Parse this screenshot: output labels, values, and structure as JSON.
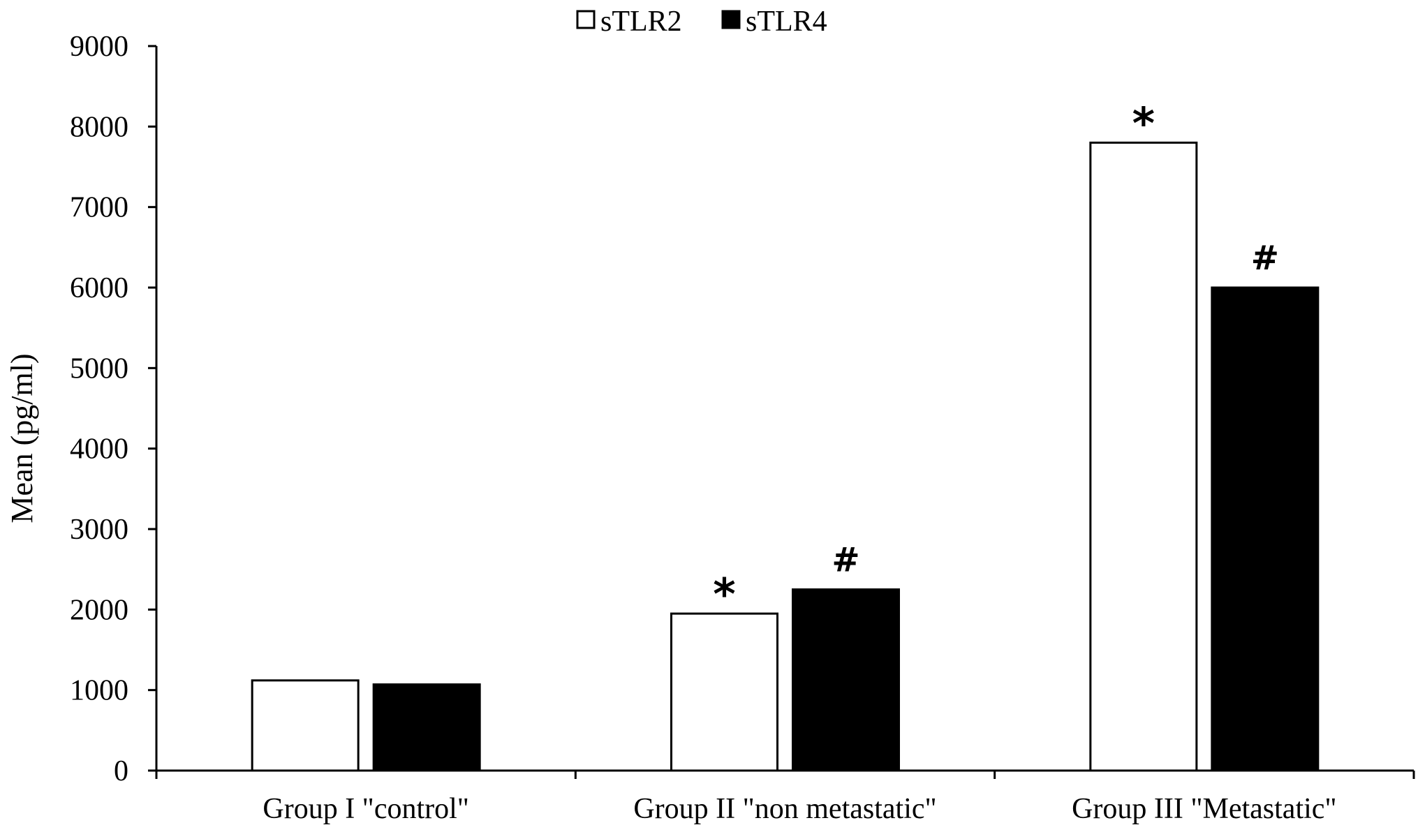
{
  "chart_data": {
    "type": "bar",
    "ylabel": "Mean (pg/ml)",
    "ylim": [
      0,
      9000
    ],
    "yticks": [
      "0",
      "1000",
      "2000",
      "3000",
      "4000",
      "5000",
      "6000",
      "7000",
      "8000",
      "9000"
    ],
    "categories": [
      "Group I \"control\"",
      "Group II \"non metastatic\"",
      "Group III \"Metastatic\""
    ],
    "series": [
      {
        "name": "sTLR2",
        "color": "#ffffff",
        "values": [
          1120,
          1950,
          7800
        ],
        "marks": [
          "",
          "*",
          "*"
        ]
      },
      {
        "name": "sTLR4",
        "color": "#000000",
        "values": [
          1070,
          2250,
          6000
        ],
        "marks": [
          "",
          "#",
          "#"
        ]
      }
    ],
    "legend": "top-center",
    "grid": false
  }
}
